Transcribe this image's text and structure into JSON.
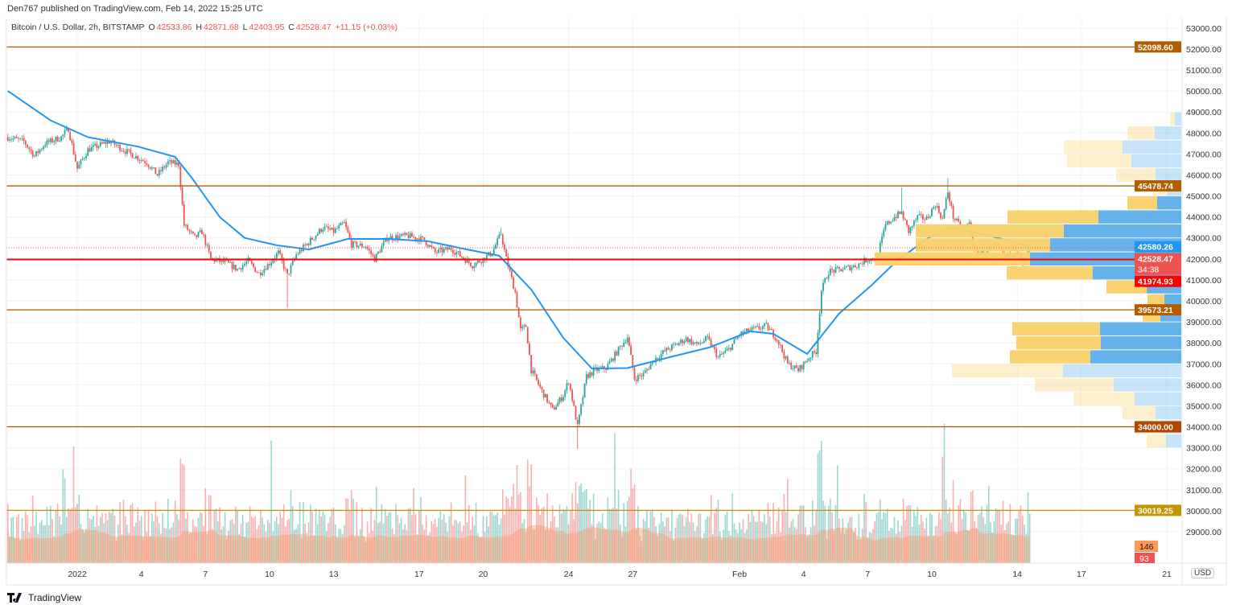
{
  "header": {
    "publisher": "Den767 published on TradingView.com, Feb 14, 2022 15:25 UTC",
    "symbol": "Bitcoin / U.S. Dollar, 2h, BITSTAMP",
    "open_label": "O",
    "open": "42533.86",
    "high_label": "H",
    "high": "42871.68",
    "low_label": "L",
    "low": "42403.95",
    "close_label": "C",
    "close": "42528.47",
    "change": "+11.15 (+0.03%)"
  },
  "currency": "USD",
  "footer": {
    "brand": "TradingView"
  },
  "colors": {
    "up": "#26a69a",
    "down": "#ef5350",
    "ma": "#2196f3",
    "vp_up": "#5eaeea",
    "vp_down": "#f9d169",
    "grid": "#f0f3fa"
  },
  "chart_data": {
    "type": "candlestick",
    "interval": "2h",
    "ylim": [
      28000,
      53500
    ],
    "price_ticks": [
      29000,
      30000,
      31000,
      32000,
      33000,
      34000,
      35000,
      36000,
      37000,
      38000,
      39000,
      40000,
      41000,
      42000,
      43000,
      44000,
      45000,
      46000,
      47000,
      48000,
      49000,
      50000,
      51000,
      52000,
      53000
    ],
    "time_ticks": [
      {
        "label": "2022",
        "date": "2022-01-01"
      },
      {
        "label": "4",
        "date": "2022-01-04"
      },
      {
        "label": "7",
        "date": "2022-01-07"
      },
      {
        "label": "10",
        "date": "2022-01-10"
      },
      {
        "label": "13",
        "date": "2022-01-13"
      },
      {
        "label": "17",
        "date": "2022-01-17"
      },
      {
        "label": "20",
        "date": "2022-01-20"
      },
      {
        "label": "24",
        "date": "2022-01-24"
      },
      {
        "label": "27",
        "date": "2022-01-27"
      },
      {
        "label": "Feb",
        "date": "2022-02-01"
      },
      {
        "label": "4",
        "date": "2022-02-04"
      },
      {
        "label": "7",
        "date": "2022-02-07"
      },
      {
        "label": "10",
        "date": "2022-02-10"
      },
      {
        "label": "14",
        "date": "2022-02-14"
      },
      {
        "label": "17",
        "date": "2022-02-17"
      },
      {
        "label": "21",
        "date": "2022-02-21"
      }
    ],
    "price_path": [
      [
        "2021-12-28 18:00",
        47800
      ],
      [
        "2021-12-29 12:00",
        47600
      ],
      [
        "2021-12-30 00:00",
        46900
      ],
      [
        "2021-12-30 12:00",
        47500
      ],
      [
        "2021-12-31 06:00",
        47800
      ],
      [
        "2021-12-31 14:00",
        48200
      ],
      [
        "2022-01-01 00:00",
        46300
      ],
      [
        "2022-01-01 12:00",
        47200
      ],
      [
        "2022-01-02 12:00",
        47600
      ],
      [
        "2022-01-03 12:00",
        47000
      ],
      [
        "2022-01-04 06:00",
        46600
      ],
      [
        "2022-01-04 18:00",
        46000
      ],
      [
        "2022-01-05 06:00",
        46600
      ],
      [
        "2022-01-05 18:00",
        46500
      ],
      [
        "2022-01-06 00:00",
        43600
      ],
      [
        "2022-01-06 12:00",
        43000
      ],
      [
        "2022-01-06 20:00",
        43300
      ],
      [
        "2022-01-07 06:00",
        42000
      ],
      [
        "2022-01-08 00:00",
        41800
      ],
      [
        "2022-01-08 12:00",
        41500
      ],
      [
        "2022-01-09 00:00",
        41900
      ],
      [
        "2022-01-09 12:00",
        41300
      ],
      [
        "2022-01-10 00:00",
        41800
      ],
      [
        "2022-01-10 10:00",
        42300
      ],
      [
        "2022-01-10 20:00",
        41200
      ],
      [
        "2022-01-11 06:00",
        42200
      ],
      [
        "2022-01-11 18:00",
        42700
      ],
      [
        "2022-01-12 12:00",
        43500
      ],
      [
        "2022-01-13 00:00",
        43300
      ],
      [
        "2022-01-13 12:00",
        43700
      ],
      [
        "2022-01-13 20:00",
        42700
      ],
      [
        "2022-01-14 12:00",
        42600
      ],
      [
        "2022-01-14 22:00",
        42000
      ],
      [
        "2022-01-15 12:00",
        43000
      ],
      [
        "2022-01-16 12:00",
        43100
      ],
      [
        "2022-01-17 06:00",
        42900
      ],
      [
        "2022-01-17 18:00",
        42300
      ],
      [
        "2022-01-18 12:00",
        42500
      ],
      [
        "2022-01-19 00:00",
        42100
      ],
      [
        "2022-01-19 12:00",
        41700
      ],
      [
        "2022-01-20 00:00",
        42000
      ],
      [
        "2022-01-20 10:00",
        42300
      ],
      [
        "2022-01-20 20:00",
        43200
      ],
      [
        "2022-01-21 02:00",
        42000
      ],
      [
        "2022-01-21 12:00",
        40400
      ],
      [
        "2022-01-21 18:00",
        38600
      ],
      [
        "2022-01-22 00:00",
        38800
      ],
      [
        "2022-01-22 06:00",
        36700
      ],
      [
        "2022-01-22 18:00",
        35700
      ],
      [
        "2022-01-23 06:00",
        34800
      ],
      [
        "2022-01-23 18:00",
        35500
      ],
      [
        "2022-01-24 00:00",
        36200
      ],
      [
        "2022-01-24 10:00",
        34000
      ],
      [
        "2022-01-24 20:00",
        36400
      ],
      [
        "2022-01-25 06:00",
        36700
      ],
      [
        "2022-01-25 18:00",
        36800
      ],
      [
        "2022-01-26 10:00",
        37800
      ],
      [
        "2022-01-26 18:00",
        38300
      ],
      [
        "2022-01-27 02:00",
        36300
      ],
      [
        "2022-01-27 12:00",
        36500
      ],
      [
        "2022-01-28 00:00",
        37200
      ],
      [
        "2022-01-28 12:00",
        37600
      ],
      [
        "2022-01-29 00:00",
        37900
      ],
      [
        "2022-01-29 12:00",
        38200
      ],
      [
        "2022-01-30 00:00",
        37900
      ],
      [
        "2022-01-30 12:00",
        38200
      ],
      [
        "2022-01-31 00:00",
        37300
      ],
      [
        "2022-01-31 12:00",
        37700
      ],
      [
        "2022-02-01 00:00",
        38400
      ],
      [
        "2022-02-01 12:00",
        38600
      ],
      [
        "2022-02-02 06:00",
        38800
      ],
      [
        "2022-02-02 18:00",
        38200
      ],
      [
        "2022-02-03 06:00",
        37000
      ],
      [
        "2022-02-03 18:00",
        36700
      ],
      [
        "2022-02-04 06:00",
        37300
      ],
      [
        "2022-02-04 14:00",
        37600
      ],
      [
        "2022-02-04 20:00",
        40500
      ],
      [
        "2022-02-05 04:00",
        41400
      ],
      [
        "2022-02-05 18:00",
        41500
      ],
      [
        "2022-02-06 12:00",
        41700
      ],
      [
        "2022-02-07 00:00",
        42000
      ],
      [
        "2022-02-07 10:00",
        42000
      ],
      [
        "2022-02-07 20:00",
        43600
      ],
      [
        "2022-02-08 06:00",
        44000
      ],
      [
        "2022-02-08 14:00",
        44200
      ],
      [
        "2022-02-08 22:00",
        43300
      ],
      [
        "2022-02-09 08:00",
        44000
      ],
      [
        "2022-02-09 18:00",
        43900
      ],
      [
        "2022-02-10 04:00",
        44600
      ],
      [
        "2022-02-10 12:00",
        43900
      ],
      [
        "2022-02-10 18:00",
        45200
      ],
      [
        "2022-02-11 00:00",
        44000
      ],
      [
        "2022-02-11 10:00",
        43400
      ],
      [
        "2022-02-11 18:00",
        43700
      ],
      [
        "2022-02-12 00:00",
        42300
      ],
      [
        "2022-02-12 12:00",
        42300
      ],
      [
        "2022-02-13 00:00",
        42600
      ],
      [
        "2022-02-13 12:00",
        42100
      ],
      [
        "2022-02-14 00:00",
        42400
      ],
      [
        "2022-02-14 06:00",
        41700
      ],
      [
        "2022-02-14 14:00",
        42528.47
      ]
    ],
    "wicks": [
      [
        "2022-01-10 20:00",
        39650
      ],
      [
        "2022-01-24 10:00",
        32950
      ],
      [
        "2022-02-08 14:00",
        45400
      ],
      [
        "2022-02-10 18:00",
        45850
      ],
      [
        "2022-01-20 20:00",
        43500
      ]
    ],
    "moving_average": [
      [
        "2021-12-28 18:00",
        50000
      ],
      [
        "2021-12-30 18:00",
        48600
      ],
      [
        "2022-01-01 12:00",
        47800
      ],
      [
        "2022-01-03 20:00",
        47350
      ],
      [
        "2022-01-05 14:00",
        46860
      ],
      [
        "2022-01-06 08:00",
        45900
      ],
      [
        "2022-01-07 16:00",
        44000
      ],
      [
        "2022-01-08 20:00",
        43000
      ],
      [
        "2022-01-10 08:00",
        42650
      ],
      [
        "2022-01-11 20:00",
        42450
      ],
      [
        "2022-01-13 16:00",
        42950
      ],
      [
        "2022-01-15 14:00",
        42950
      ],
      [
        "2022-01-17 10:00",
        42840
      ],
      [
        "2022-01-19 06:00",
        42450
      ],
      [
        "2022-01-20 18:00",
        42150
      ],
      [
        "2022-01-22 06:00",
        40540
      ],
      [
        "2022-01-23 18:00",
        38240
      ],
      [
        "2022-01-25 02:00",
        36780
      ],
      [
        "2022-01-26 18:00",
        36800
      ],
      [
        "2022-01-28 16:00",
        37300
      ],
      [
        "2022-01-30 14:00",
        37780
      ],
      [
        "2022-02-01 12:00",
        38550
      ],
      [
        "2022-02-02 14:00",
        38430
      ],
      [
        "2022-02-04 04:00",
        37470
      ],
      [
        "2022-02-05 16:00",
        39400
      ],
      [
        "2022-02-07 04:00",
        40730
      ],
      [
        "2022-02-08 08:00",
        41880
      ],
      [
        "2022-02-09 20:00",
        43000
      ],
      [
        "2022-02-11 00:00",
        43500
      ],
      [
        "2022-02-12 06:00",
        43200
      ],
      [
        "2022-02-13 12:00",
        42900
      ],
      [
        "2022-02-14 14:00",
        42580.26
      ]
    ],
    "horizontal_levels": [
      {
        "price": "52098.60",
        "color": "#b35c00"
      },
      {
        "price": "45478.74",
        "color": "#b35c00"
      },
      {
        "price": "41974.93",
        "color": "#ff0000"
      },
      {
        "price": "39573.21",
        "color": "#b35c00"
      },
      {
        "price": "34000.00",
        "color": "#b34700"
      },
      {
        "price": "30019.25",
        "color": "#c49500"
      }
    ],
    "last_price": {
      "price": "42528.47",
      "countdown": "34:38",
      "color": "#ef5350"
    },
    "ma_value": {
      "price": "42580.26",
      "color": "#2196f3"
    },
    "volume_labels": {
      "volume_ma": "146",
      "volume": "93"
    },
    "volume_profile": {
      "price_range": [
        33000,
        49000
      ],
      "rows_top_down": [
        {
          "up": 8,
          "down": 6,
          "value_area": false
        },
        {
          "up": 33,
          "down": 34,
          "value_area": false
        },
        {
          "up": 73,
          "down": 73,
          "value_area": false
        },
        {
          "up": 62,
          "down": 80,
          "value_area": false
        },
        {
          "up": 32,
          "down": 49,
          "value_area": false
        },
        {
          "up": 17,
          "down": 18,
          "value_area": false
        },
        {
          "up": 30,
          "down": 37,
          "value_area": true
        },
        {
          "up": 103,
          "down": 113,
          "value_area": true
        },
        {
          "up": 146,
          "down": 184,
          "value_area": true
        },
        {
          "up": 163,
          "down": 167,
          "value_area": true
        },
        {
          "up": 188,
          "down": 193,
          "value_area": true
        },
        {
          "up": 110,
          "down": 107,
          "value_area": true
        },
        {
          "up": 43,
          "down": 50,
          "value_area": true
        },
        {
          "up": 21,
          "down": 21,
          "value_area": true
        },
        {
          "up": 26,
          "down": 22,
          "value_area": true
        },
        {
          "up": 101,
          "down": 109,
          "value_area": true
        },
        {
          "up": 100,
          "down": 105,
          "value_area": true
        },
        {
          "up": 113,
          "down": 100,
          "value_area": true
        },
        {
          "up": 147,
          "down": 138,
          "value_area": false
        },
        {
          "up": 84,
          "down": 98,
          "value_area": false
        },
        {
          "up": 58,
          "down": 76,
          "value_area": false
        },
        {
          "up": 32,
          "down": 41,
          "value_area": false
        },
        {
          "up": 25,
          "down": 33,
          "value_area": false
        },
        {
          "up": 19,
          "down": 24,
          "value_area": false
        }
      ]
    }
  }
}
